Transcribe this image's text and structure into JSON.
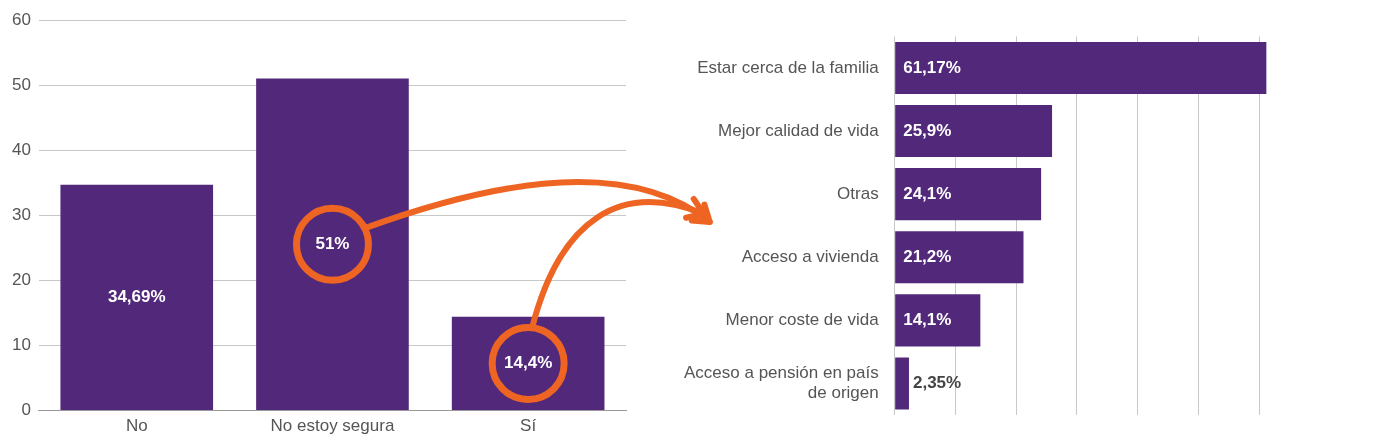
{
  "chart_data": [
    {
      "type": "bar",
      "categories": [
        "No",
        "No estoy segura",
        "Sí"
      ],
      "values": [
        34.69,
        51,
        14.4
      ],
      "value_labels": [
        "34,69%",
        "51%",
        "14,4%"
      ],
      "color": "#52297a",
      "ylim": [
        0,
        60
      ],
      "yticks": [
        0,
        10,
        20,
        30,
        40,
        50,
        60
      ],
      "grid": "y"
    },
    {
      "type": "bar",
      "orientation": "horizontal",
      "categories": [
        "Estar cerca de la familia",
        "Mejor calidad de vida",
        "Otras",
        "Acceso a vivienda",
        "Menor coste de vida",
        "Acceso a pensión en país de origen"
      ],
      "values": [
        61.17,
        25.9,
        24.1,
        21.2,
        14.1,
        2.35
      ],
      "value_labels": [
        "61,17%",
        "25,9%",
        "24,1%",
        "21,2%",
        "14,1%",
        "2,35%"
      ],
      "color": "#52297a",
      "xticks": [
        {
          "value": 0,
          "label": null
        },
        {
          "value": 10,
          "label": null
        },
        {
          "value": 20,
          "label": null
        },
        {
          "value": 30,
          "label": null
        },
        {
          "value": 40,
          "label": null
        },
        {
          "value": 50,
          "label": null
        },
        {
          "value": 60,
          "label": null
        }
      ],
      "grid": "x",
      "tick_labels": "y"
    }
  ]
}
